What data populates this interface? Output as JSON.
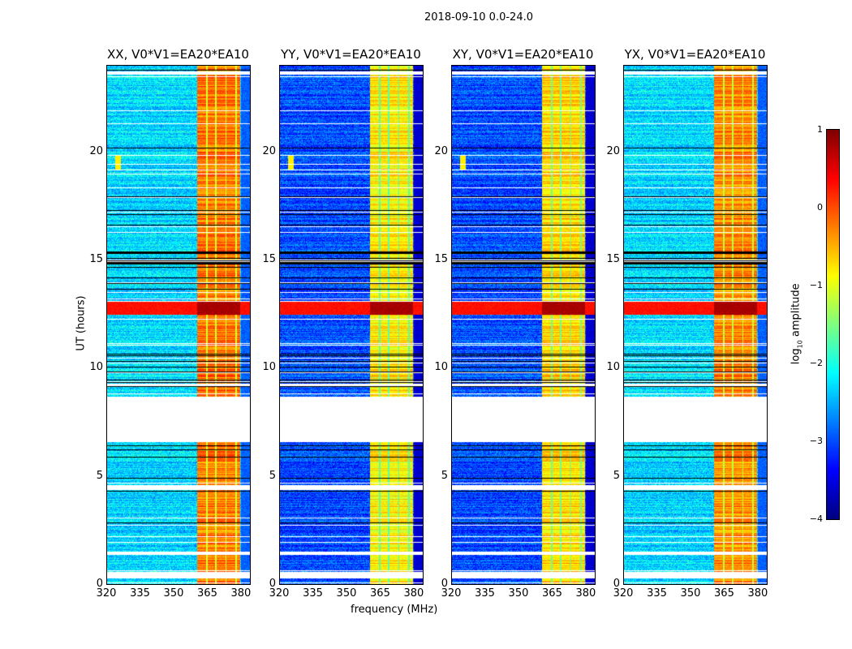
{
  "title": "2018-09-10 0.0-24.0",
  "chart_data": {
    "type": "heatmap",
    "xlabel": "frequency (MHz)",
    "ylabel": "UT (hours)",
    "xlim": [
      320,
      384
    ],
    "ylim": [
      0,
      24
    ],
    "xticks": [
      "320",
      "335",
      "350",
      "365",
      "380"
    ],
    "xtick_values": [
      320,
      335,
      350,
      365,
      380
    ],
    "yticks": [
      "0",
      "5",
      "10",
      "15",
      "20"
    ],
    "ytick_values": [
      0,
      5,
      10,
      15,
      20
    ],
    "panels": [
      {
        "title": "XX, V0*V1=EA20*EA10",
        "background_log_amp": -2.3,
        "band_log_amp": -0.2
      },
      {
        "title": "YY, V0*V1=EA20*EA10",
        "background_log_amp": -3.0,
        "band_log_amp": -0.8
      },
      {
        "title": "XY, V0*V1=EA20*EA10",
        "background_log_amp": -3.0,
        "band_log_amp": -0.7
      },
      {
        "title": "YX, V0*V1=EA20*EA10",
        "background_log_amp": -2.3,
        "band_log_amp": -0.3
      }
    ],
    "rfi_band_mhz": [
      360.5,
      379.5
    ],
    "strong_rfi_ut": [
      12.5,
      13.1
    ],
    "data_gaps_ut": [
      [
        6.6,
        8.7
      ],
      [
        4.4,
        4.6
      ],
      [
        0.3,
        0.6
      ],
      [
        1.4,
        1.55
      ],
      [
        23.6,
        23.75
      ]
    ],
    "colorbar": {
      "label": "log10 amplitude",
      "label_main": "log",
      "label_sub": "10",
      "label_rest": " amplitude",
      "range": [
        -4,
        1
      ],
      "ticks": [
        "1",
        "0",
        "−1",
        "−2",
        "−3",
        "−4"
      ],
      "tick_values": [
        1,
        0,
        -1,
        -2,
        -3,
        -4
      ],
      "colormap": "jet"
    }
  }
}
